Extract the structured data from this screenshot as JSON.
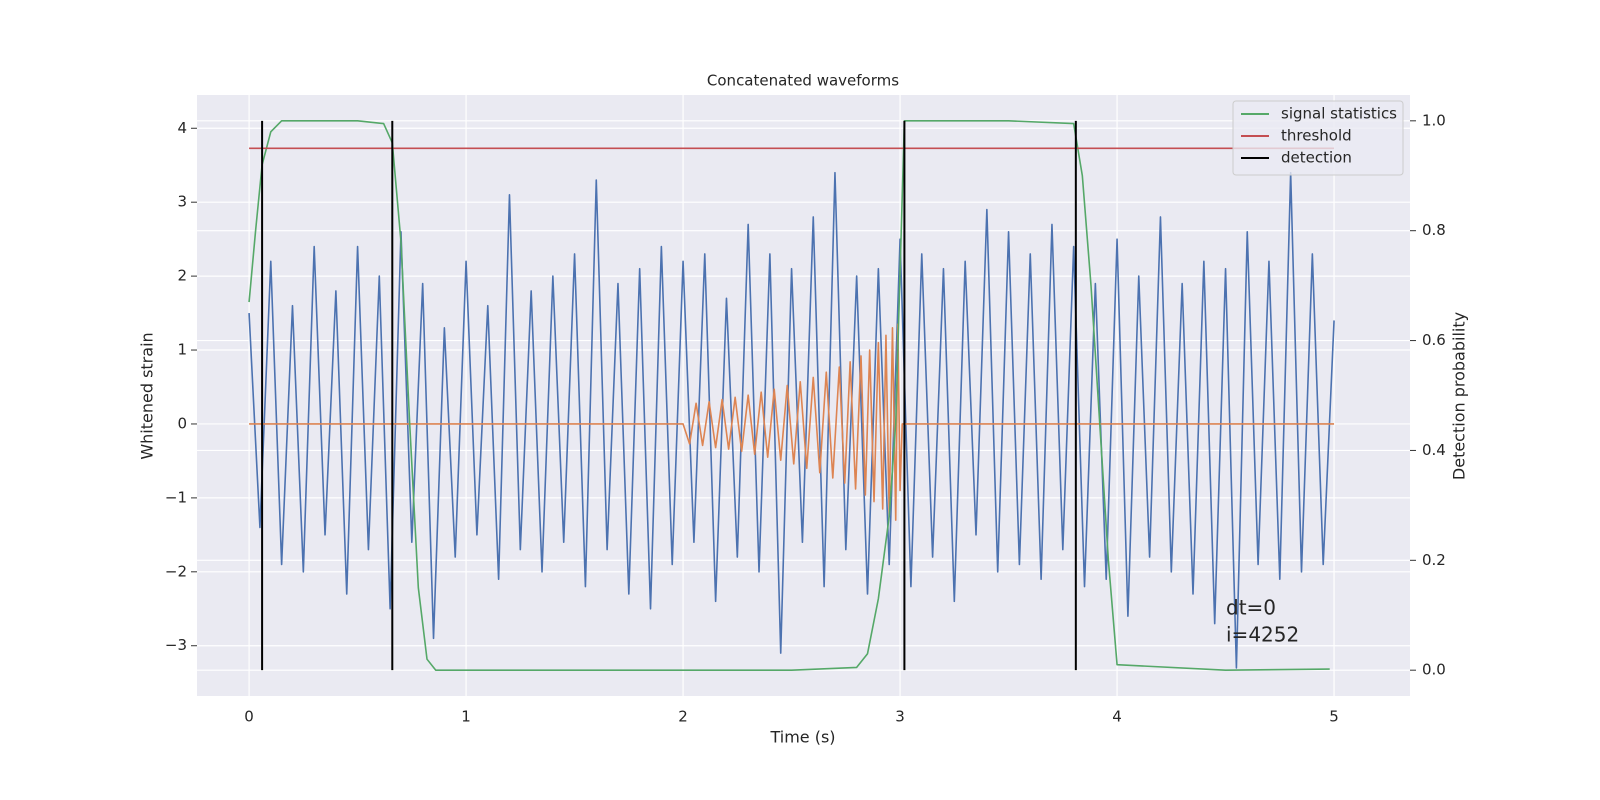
{
  "chart_data": {
    "type": "line",
    "title": "Concatenated waveforms",
    "x_label": "Time (s)",
    "y_label": "Whitened strain",
    "y2_label": "Detection probability",
    "xlim": [
      -0.24,
      5.35
    ],
    "ylim": [
      -3.68,
      4.45
    ],
    "y2lim": [
      -0.047,
      1.047
    ],
    "xticks": [
      0,
      1,
      2,
      3,
      4,
      5
    ],
    "yticks": [
      {
        "value": -3,
        "label": "−3"
      },
      {
        "value": -2,
        "label": "−2"
      },
      {
        "value": -1,
        "label": "−1"
      },
      0,
      1,
      2,
      3,
      4
    ],
    "y2ticks": [
      {
        "value": 0,
        "label": "0.0"
      },
      0.2,
      0.4,
      0.6,
      0.8,
      {
        "value": 1,
        "label": "1.0"
      }
    ],
    "grid": true,
    "legend": "upper right",
    "annotations": [
      "dt=0",
      "i=4252"
    ],
    "series": [
      {
        "color": "#4c72b0",
        "x": [
          0,
          0.05,
          0.1,
          0.15,
          0.2,
          0.25,
          0.3,
          0.35,
          0.4,
          0.45,
          0.5,
          0.55,
          0.6,
          0.65,
          0.7,
          0.75,
          0.8,
          0.85,
          0.9,
          0.95,
          1,
          1.05,
          1.1,
          1.15,
          1.2,
          1.25,
          1.3,
          1.35,
          1.4,
          1.45,
          1.5,
          1.55,
          1.6,
          1.65,
          1.7,
          1.75,
          1.8,
          1.85,
          1.9,
          1.95,
          2,
          2.05,
          2.1,
          2.15,
          2.2,
          2.25,
          2.3,
          2.35,
          2.4,
          2.45,
          2.5,
          2.55,
          2.6,
          2.65,
          2.7,
          2.75,
          2.8,
          2.85,
          2.9,
          2.95,
          3,
          3.05,
          3.1,
          3.15,
          3.2,
          3.25,
          3.3,
          3.35,
          3.4,
          3.45,
          3.5,
          3.55,
          3.6,
          3.65,
          3.7,
          3.75,
          3.8,
          3.85,
          3.9,
          3.95,
          4,
          4.05,
          4.1,
          4.15,
          4.2,
          4.25,
          4.3,
          4.35,
          4.4,
          4.45,
          4.5,
          4.55,
          4.6,
          4.65,
          4.7,
          4.75,
          4.8,
          4.85,
          4.9,
          4.95,
          5
        ],
        "values": [
          1.5,
          -1.4,
          2.2,
          -1.9,
          1.6,
          -2.0,
          2.4,
          -1.5,
          1.8,
          -2.3,
          2.4,
          -1.7,
          2.0,
          -2.5,
          2.6,
          -1.6,
          1.9,
          -2.9,
          1.3,
          -1.8,
          2.2,
          -1.5,
          1.6,
          -2.1,
          3.1,
          -1.7,
          1.8,
          -2.0,
          2.0,
          -1.6,
          2.3,
          -2.2,
          3.3,
          -1.7,
          1.9,
          -2.3,
          2.1,
          -2.5,
          2.4,
          -1.9,
          2.2,
          -1.6,
          2.3,
          -2.4,
          1.7,
          -1.8,
          2.7,
          -2.0,
          2.3,
          -3.1,
          2.1,
          -1.6,
          2.8,
          -2.2,
          3.4,
          -1.7,
          2.0,
          -2.3,
          2.1,
          -1.9,
          2.5,
          -2.2,
          2.3,
          -1.8,
          2.1,
          -2.4,
          2.2,
          -1.5,
          2.9,
          -2.0,
          2.6,
          -1.9,
          2.3,
          -2.1,
          2.7,
          -1.7,
          2.4,
          -2.2,
          1.9,
          -2.1,
          2.5,
          -2.6,
          2.0,
          -1.8,
          2.8,
          -2.0,
          1.9,
          -2.3,
          2.2,
          -2.7,
          2.1,
          -3.3,
          2.6,
          -1.9,
          2.2,
          -2.1,
          3.4,
          -2.0,
          2.3,
          -1.9,
          1.4
        ]
      },
      {
        "color": "#dd8452",
        "x": [
          0,
          2.0,
          2.03,
          2.06,
          2.09,
          2.12,
          2.15,
          2.18,
          2.21,
          2.24,
          2.27,
          2.3,
          2.33,
          2.36,
          2.39,
          2.42,
          2.45,
          2.48,
          2.51,
          2.54,
          2.57,
          2.6,
          2.63,
          2.66,
          2.69,
          2.72,
          2.745,
          2.77,
          2.795,
          2.82,
          2.84,
          2.86,
          2.88,
          2.9,
          2.92,
          2.935,
          2.95,
          2.965,
          2.98,
          2.99,
          3.0,
          3.01,
          5.0
        ],
        "values": [
          0,
          0,
          -0.27,
          0.28,
          -0.29,
          0.3,
          -0.32,
          0.33,
          -0.34,
          0.36,
          -0.37,
          0.39,
          -0.41,
          0.43,
          -0.45,
          0.47,
          -0.49,
          0.52,
          -0.54,
          0.57,
          -0.6,
          0.63,
          -0.66,
          0.7,
          -0.73,
          0.77,
          -0.8,
          0.84,
          -0.88,
          0.92,
          -0.96,
          1.0,
          -1.05,
          1.1,
          -1.15,
          1.2,
          -1.25,
          1.3,
          -1.3,
          1.35,
          -0.9,
          0,
          0
        ]
      },
      {
        "name": "signal statistics",
        "color": "#55a868",
        "axis": "y2",
        "x": [
          0,
          0.03,
          0.06,
          0.1,
          0.15,
          0.2,
          0.3,
          0.5,
          0.62,
          0.66,
          0.7,
          0.74,
          0.78,
          0.82,
          0.86,
          1.5,
          2.5,
          2.8,
          2.85,
          2.9,
          2.95,
          2.98,
          3.02,
          3.1,
          3.5,
          3.8,
          3.84,
          3.88,
          3.92,
          3.96,
          4.0,
          4.5,
          4.98
        ],
        "values": [
          0.67,
          0.8,
          0.92,
          0.98,
          1.0,
          1.0,
          1.0,
          1.0,
          0.995,
          0.96,
          0.78,
          0.45,
          0.15,
          0.02,
          0.0,
          0.0,
          0.0,
          0.005,
          0.03,
          0.13,
          0.28,
          0.45,
          1.0,
          1.0,
          1.0,
          0.995,
          0.9,
          0.7,
          0.45,
          0.2,
          0.01,
          0.0,
          0.002
        ]
      },
      {
        "name": "threshold",
        "color": "#c44e52",
        "axis": "y2",
        "x": [
          0,
          5
        ],
        "values": [
          0.95,
          0.95
        ]
      },
      {
        "name": "detection",
        "color": "#000000",
        "axis": "y2",
        "type": "vlines",
        "x": [
          0.06,
          0.66,
          3.02,
          3.81
        ],
        "ymin": 0,
        "ymax": 1
      }
    ]
  }
}
